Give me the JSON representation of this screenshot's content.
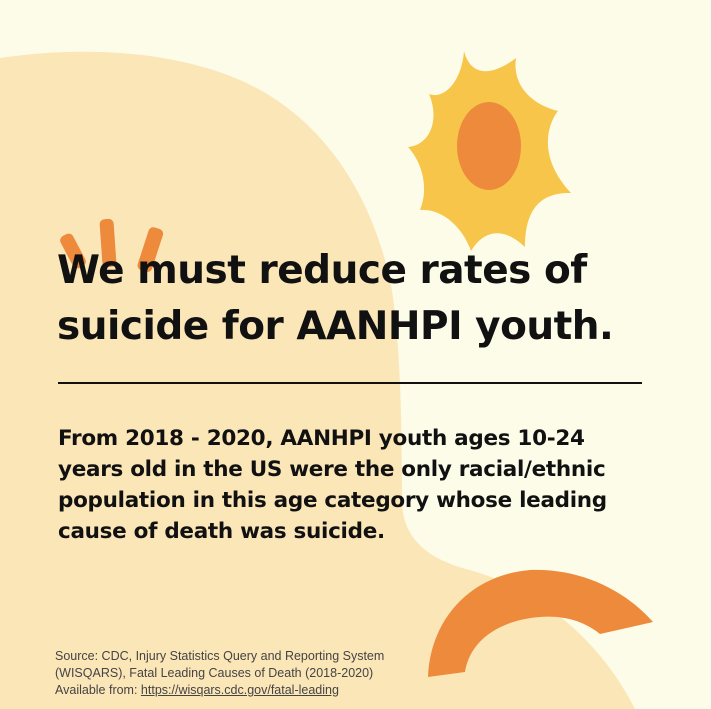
{
  "headline": {
    "line1": "We must reduce rates of",
    "line2": "suicide for AANHPI youth."
  },
  "body": {
    "line1": "From 2018 - 2020, AANHPI youth ages 10-24",
    "line2": "years old in the US were the only racial/ethnic",
    "line3": "population in this age category whose leading",
    "line4": "cause of death was suicide."
  },
  "source": {
    "line1": "Source: CDC,  Injury Statistics Query and Reporting System",
    "line2": "(WISQARS), Fatal Leading Causes of Death (2018-2020)",
    "available_label": "Available from: ",
    "link": "https://wisqars.cdc.gov/fatal-leading"
  },
  "decorations": [
    "sun-icon",
    "sparkle-marks",
    "orange-arc"
  ],
  "colors": {
    "background": "#fdfce9",
    "blob": "#fbe6b8",
    "sun": "#f6c54a",
    "accent": "#ee8a3c",
    "text": "#111111"
  }
}
